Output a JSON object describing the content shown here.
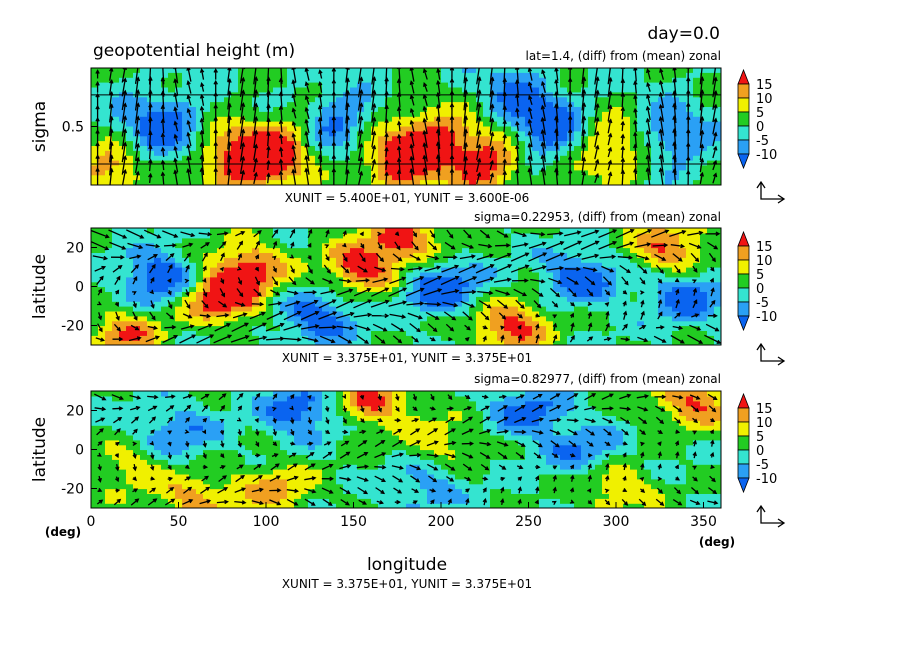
{
  "figure": {
    "day_label": "day=0.0",
    "title": "geopotential height (m)",
    "xlabel": "longitude",
    "xunit_deg": "(deg)",
    "yunit_deg": "(deg)",
    "colors": {
      "c_lt_-10": "#0a64f0",
      "c_-10_-5": "#2aa0f5",
      "c_-5_0": "#34e4d0",
      "c_0_5": "#22cc22",
      "c_5_10": "#f0f000",
      "c_10_15": "#f0a020",
      "c_gt_15": "#f01414"
    }
  },
  "chart_data": [
    {
      "type": "heatmap",
      "panel": "vertical-section",
      "subtitle": "lat=1.4, (diff) from (mean) zonal",
      "ylabel": "sigma",
      "x_range": [
        0,
        360
      ],
      "y_ticks": [
        "0.5"
      ],
      "colorbar_ticks": [
        "15",
        "10",
        "5",
        "0",
        "-5",
        "-10"
      ],
      "vector_unit": "XUNIT = 5.400E+01, YUNIT = 3.600E-06",
      "hotspots": [
        {
          "x": 85,
          "y": 0.8,
          "v": 20
        },
        {
          "x": 110,
          "y": 0.7,
          "v": 16
        },
        {
          "x": 175,
          "y": 0.8,
          "v": 18
        },
        {
          "x": 195,
          "y": 0.6,
          "v": 14
        },
        {
          "x": 225,
          "y": 0.8,
          "v": 18
        },
        {
          "x": 300,
          "y": 0.7,
          "v": 14
        },
        {
          "x": 10,
          "y": 0.9,
          "v": 12
        },
        {
          "x": 40,
          "y": 0.5,
          "v": -14
        },
        {
          "x": 140,
          "y": 0.5,
          "v": -12
        },
        {
          "x": 260,
          "y": 0.5,
          "v": -14
        },
        {
          "x": 330,
          "y": 0.6,
          "v": -12
        },
        {
          "x": 240,
          "y": 0.2,
          "v": -8
        }
      ]
    },
    {
      "type": "heatmap",
      "panel": "sigma-0.22953",
      "subtitle": "sigma=0.22953, (diff) from (mean) zonal",
      "ylabel": "latitude",
      "x_range": [
        0,
        360
      ],
      "y_range": [
        -30,
        30
      ],
      "y_ticks": [
        "20",
        "0",
        "-20"
      ],
      "colorbar_ticks": [
        "15",
        "10",
        "5",
        "0",
        "-5",
        "-10"
      ],
      "vector_unit": "XUNIT = 3.375E+01, YUNIT = 3.375E+01",
      "hotspots": [
        {
          "x": 75,
          "y": -5,
          "v": 22
        },
        {
          "x": 90,
          "y": 10,
          "v": 16
        },
        {
          "x": 155,
          "y": 10,
          "v": 18
        },
        {
          "x": 240,
          "y": -20,
          "v": 18
        },
        {
          "x": 180,
          "y": 25,
          "v": 16
        },
        {
          "x": 330,
          "y": 20,
          "v": 16
        },
        {
          "x": 40,
          "y": 5,
          "v": -16
        },
        {
          "x": 130,
          "y": -15,
          "v": -14
        },
        {
          "x": 200,
          "y": 0,
          "v": -16
        },
        {
          "x": 280,
          "y": 5,
          "v": -14
        },
        {
          "x": 340,
          "y": -5,
          "v": -14
        },
        {
          "x": 20,
          "y": -25,
          "v": 14
        }
      ]
    },
    {
      "type": "heatmap",
      "panel": "sigma-0.82977",
      "subtitle": "sigma=0.82977, (diff) from (mean) zonal",
      "ylabel": "latitude",
      "x_range": [
        0,
        360
      ],
      "y_range": [
        -30,
        30
      ],
      "x_ticks": [
        "0",
        "50",
        "100",
        "150",
        "200",
        "250",
        "300",
        "350"
      ],
      "y_ticks": [
        "20",
        "0",
        "-20"
      ],
      "colorbar_ticks": [
        "15",
        "10",
        "5",
        "0",
        "-5",
        "-10"
      ],
      "vector_unit": "XUNIT = 3.375E+01, YUNIT = 3.375E+01",
      "hotspots": [
        {
          "x": 160,
          "y": 25,
          "v": 16
        },
        {
          "x": 345,
          "y": 25,
          "v": 16
        },
        {
          "x": 105,
          "y": -20,
          "v": 12
        },
        {
          "x": 60,
          "y": -25,
          "v": 12
        },
        {
          "x": 200,
          "y": 5,
          "v": 8
        },
        {
          "x": 300,
          "y": -20,
          "v": 10
        },
        {
          "x": 120,
          "y": 20,
          "v": -14
        },
        {
          "x": 250,
          "y": 20,
          "v": -12
        },
        {
          "x": 50,
          "y": 10,
          "v": -10
        },
        {
          "x": 280,
          "y": 0,
          "v": -10
        },
        {
          "x": 20,
          "y": -10,
          "v": 8
        },
        {
          "x": 190,
          "y": -20,
          "v": -8
        }
      ]
    }
  ]
}
